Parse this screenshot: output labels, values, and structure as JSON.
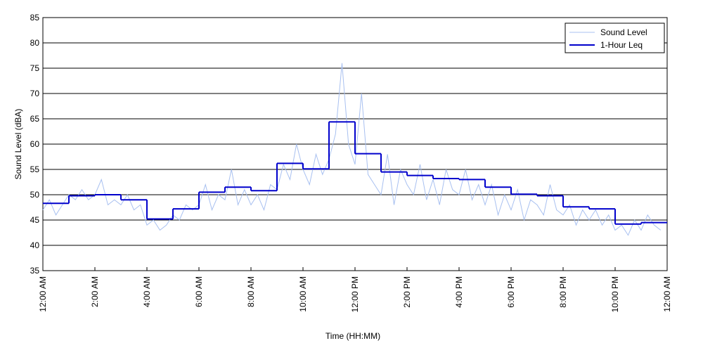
{
  "chart_data": {
    "type": "line",
    "xlabel": "Time (HH:MM)",
    "ylabel": "Sound Level (dBA)",
    "xlim": [
      0,
      24
    ],
    "ylim": [
      35,
      85
    ],
    "yticks": [
      35,
      40,
      45,
      50,
      55,
      60,
      65,
      70,
      75,
      80,
      85
    ],
    "xticks": [
      {
        "value": 0,
        "label": "12:00 AM"
      },
      {
        "value": 2,
        "label": "2:00 AM"
      },
      {
        "value": 4,
        "label": "4:00 AM"
      },
      {
        "value": 6,
        "label": "6:00 AM"
      },
      {
        "value": 8,
        "label": "8:00 AM"
      },
      {
        "value": 10,
        "label": "10:00 AM"
      },
      {
        "value": 12,
        "label": "12:00 PM"
      },
      {
        "value": 14,
        "label": "2:00 PM"
      },
      {
        "value": 16,
        "label": "4:00 PM"
      },
      {
        "value": 18,
        "label": "6:00 PM"
      },
      {
        "value": 20,
        "label": "8:00 PM"
      },
      {
        "value": 22,
        "label": "10:00 PM"
      },
      {
        "value": 24,
        "label": "12:00 AM"
      }
    ],
    "grid": true,
    "legend": "upper right",
    "series": [
      {
        "name": "Sound Level",
        "color": "#a8c0f0",
        "style": "line",
        "x": [
          0,
          0.25,
          0.5,
          0.75,
          1,
          1.25,
          1.5,
          1.75,
          2,
          2.25,
          2.5,
          2.75,
          3,
          3.25,
          3.5,
          3.75,
          4,
          4.25,
          4.5,
          4.75,
          5,
          5.25,
          5.5,
          5.75,
          6,
          6.25,
          6.5,
          6.75,
          7,
          7.25,
          7.5,
          7.75,
          8,
          8.25,
          8.5,
          8.75,
          9,
          9.25,
          9.5,
          9.75,
          10,
          10.25,
          10.5,
          10.75,
          11,
          11.25,
          11.5,
          11.75,
          12,
          12.25,
          12.5,
          12.75,
          13,
          13.25,
          13.5,
          13.75,
          14,
          14.25,
          14.5,
          14.75,
          15,
          15.25,
          15.5,
          15.75,
          16,
          16.25,
          16.5,
          16.75,
          17,
          17.25,
          17.5,
          17.75,
          18,
          18.25,
          18.5,
          18.75,
          19,
          19.25,
          19.5,
          19.75,
          20,
          20.25,
          20.5,
          20.75,
          21,
          21.25,
          21.5,
          21.75,
          22,
          22.25,
          22.5,
          22.75,
          23,
          23.25,
          23.5,
          23.75
        ],
        "values": [
          47,
          49,
          46,
          48,
          50,
          49,
          51,
          49,
          50,
          53,
          48,
          49,
          48,
          50,
          47,
          48,
          44,
          45,
          43,
          44,
          46,
          45,
          48,
          47,
          48,
          52,
          47,
          50,
          49,
          55,
          48,
          51,
          48,
          50,
          47,
          52,
          51,
          56,
          53,
          60,
          55,
          52,
          58,
          54,
          57,
          62,
          76,
          60,
          56,
          70,
          54,
          52,
          50,
          58,
          48,
          55,
          52,
          50,
          56,
          49,
          53,
          48,
          55,
          51,
          50,
          55,
          49,
          52,
          48,
          52,
          46,
          50,
          47,
          51,
          45,
          49,
          48,
          46,
          52,
          47,
          46,
          48,
          44,
          47,
          45,
          47,
          44,
          46,
          43,
          44,
          42,
          45,
          43,
          46,
          44,
          43
        ]
      },
      {
        "name": "1-Hour Leq",
        "color": "#0000cc",
        "style": "step",
        "x": [
          0,
          1,
          2,
          3,
          4,
          5,
          6,
          7,
          8,
          9,
          10,
          11,
          12,
          13,
          14,
          15,
          16,
          17,
          18,
          19,
          20,
          21,
          22,
          23
        ],
        "values": [
          48.3,
          49.8,
          50.0,
          49.0,
          45.2,
          47.2,
          50.5,
          51.5,
          50.8,
          56.2,
          55.1,
          64.4,
          58.1,
          54.5,
          53.8,
          53.2,
          53.0,
          51.5,
          50.1,
          49.8,
          47.6,
          47.2,
          44.2,
          44.5
        ]
      }
    ]
  }
}
